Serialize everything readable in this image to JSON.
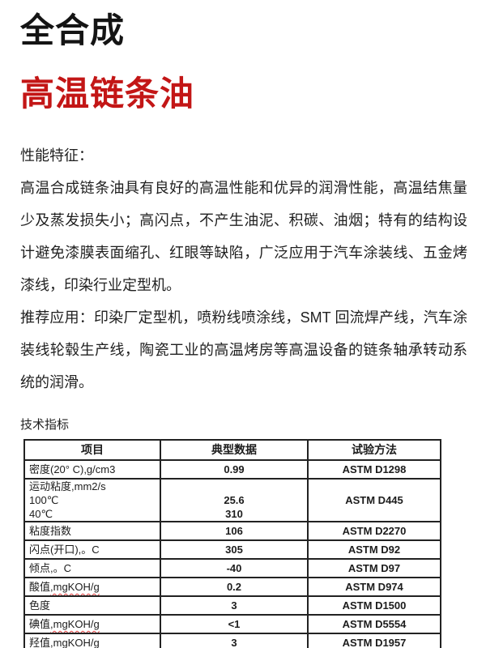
{
  "header": {
    "title_line1": "全合成",
    "title_line2": "高温链条油",
    "title_red_color": "#c31616"
  },
  "features": {
    "heading": "性能特征：",
    "body": "高温合成链条油具有良好的高温性能和优异的润滑性能，高温结焦量少及蒸发损失小；高闪点，不产生油泥、积碳、油烟；特有的结构设计避免漆膜表面缩孔、红眼等缺陷，广泛应用于汽车涂装线、五金烤漆线，印染行业定型机。"
  },
  "applications": {
    "body": "推荐应用：印染厂定型机，喷粉线喷涂线，SMT 回流焊产线，汽车涂装线轮毂生产线，陶瓷工业的高温烤房等高温设备的链条轴承转动系统的润滑。"
  },
  "spec_table": {
    "label": "技术指标",
    "headers": [
      "项目",
      "典型数据",
      "试验方法"
    ],
    "squiggle_color": "#e03c3c",
    "rows": [
      {
        "item": "密度(20° C),g/cm3",
        "value": "0.99",
        "method": "ASTM D1298"
      },
      {
        "item_lines": [
          "运动粘度,mm2/s",
          "100℃",
          "40℃"
        ],
        "value_lines": [
          "",
          "25.6",
          "310"
        ],
        "method": "ASTM D445"
      },
      {
        "item": "粘度指数",
        "value": "106",
        "method": "ASTM D2270"
      },
      {
        "item": "闪点(开口),。C",
        "value": "305",
        "method": "ASTM D92"
      },
      {
        "item": "倾点,。C",
        "value": "-40",
        "method": "ASTM D97"
      },
      {
        "item": "酸值",
        "item_squiggle": ",mgKOH/g",
        "value": "0.2",
        "method": "ASTM D974"
      },
      {
        "item": "色度",
        "value": "3",
        "method": "ASTM D1500"
      },
      {
        "item": "碘值",
        "item_squiggle": ",mgKOH/g",
        "value": "<1",
        "method": "ASTM D5554"
      },
      {
        "item": "羟值",
        "item_squiggle": ",mgKOH/g",
        "value": "3",
        "method": "ASTM D1957"
      }
    ]
  }
}
